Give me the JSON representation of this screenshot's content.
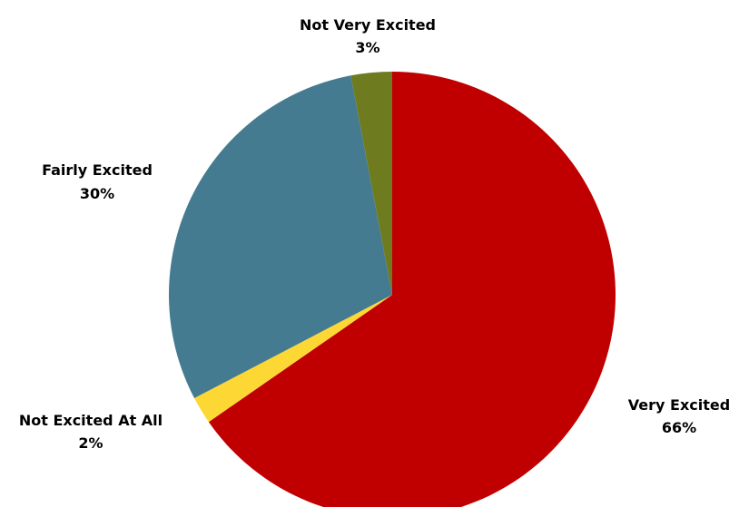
{
  "chart_data": {
    "type": "pie",
    "title": "",
    "slices": [
      {
        "name": "Very Excited",
        "value": 66,
        "label": "66%",
        "color": "#C00000"
      },
      {
        "name": "Not Excited At All",
        "value": 2,
        "label": "2%",
        "color": "#FDD835"
      },
      {
        "name": "Fairly Excited",
        "value": 30,
        "label": "30%",
        "color": "#457B90"
      },
      {
        "name": "Not Very Excited",
        "value": 3,
        "label": "3%",
        "color": "#6E7C1F"
      }
    ],
    "start_angle": "12 o'clock",
    "direction": "clockwise",
    "legend": "none",
    "data_labels": "outside"
  }
}
